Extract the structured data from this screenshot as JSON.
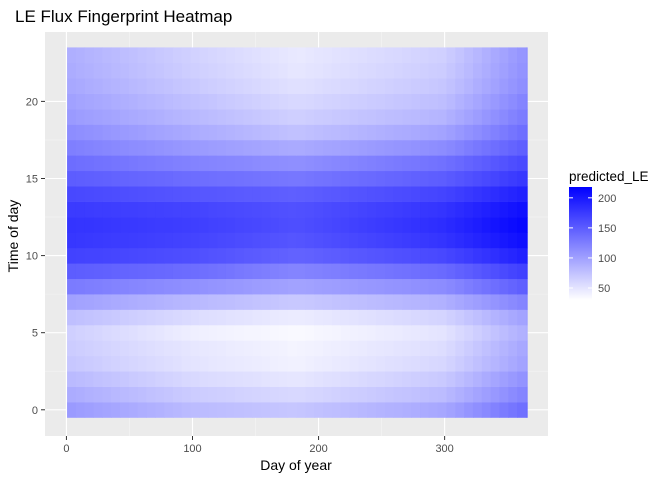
{
  "chart_data": {
    "type": "heatmap",
    "title": "LE Flux Fingerprint Heatmap",
    "xlabel": "Day of year",
    "ylabel": "Time of day",
    "xlim": [
      -17,
      382
    ],
    "ylim": [
      -1.7,
      24.5
    ],
    "x_ticks": [
      0,
      100,
      200,
      300
    ],
    "y_ticks": [
      0,
      5,
      10,
      15,
      20
    ],
    "x_range": [
      1,
      365
    ],
    "hours": [
      0,
      1,
      2,
      3,
      4,
      5,
      6,
      7,
      8,
      9,
      10,
      11,
      12,
      13,
      14,
      15,
      16,
      17,
      18,
      19,
      20,
      21,
      22,
      23
    ],
    "day_samples": [
      1,
      100,
      183,
      300,
      365
    ],
    "values": [
      [
        105,
        80,
        72,
        95,
        138
      ],
      [
        92,
        68,
        58,
        80,
        122
      ],
      [
        82,
        58,
        48,
        70,
        112
      ],
      [
        72,
        50,
        40,
        60,
        100
      ],
      [
        68,
        48,
        38,
        55,
        96
      ],
      [
        66,
        42,
        34,
        50,
        90
      ],
      [
        78,
        56,
        44,
        62,
        100
      ],
      [
        100,
        82,
        70,
        88,
        122
      ],
      [
        128,
        112,
        98,
        115,
        150
      ],
      [
        150,
        138,
        120,
        140,
        172
      ],
      [
        170,
        160,
        145,
        165,
        195
      ],
      [
        178,
        168,
        155,
        180,
        208
      ],
      [
        180,
        172,
        160,
        185,
        214
      ],
      [
        175,
        168,
        158,
        180,
        208
      ],
      [
        165,
        155,
        148,
        168,
        195
      ],
      [
        150,
        138,
        130,
        150,
        178
      ],
      [
        138,
        122,
        112,
        135,
        165
      ],
      [
        125,
        105,
        92,
        115,
        150
      ],
      [
        115,
        92,
        75,
        98,
        138
      ],
      [
        105,
        82,
        65,
        85,
        128
      ],
      [
        100,
        76,
        58,
        78,
        122
      ],
      [
        95,
        70,
        52,
        72,
        115
      ],
      [
        92,
        66,
        48,
        68,
        112
      ],
      [
        90,
        64,
        46,
        65,
        110
      ]
    ],
    "legend": {
      "title": "predicted_LE",
      "ticks": [
        50,
        100,
        150,
        200
      ],
      "range": [
        30,
        218
      ],
      "low_color": "#ffffff",
      "high_color": "#0000ff"
    },
    "colors": {
      "panel": "#ebebeb",
      "grid_major": "#ffffff",
      "grid_minor": "#f5f5f5"
    },
    "grid": true
  }
}
